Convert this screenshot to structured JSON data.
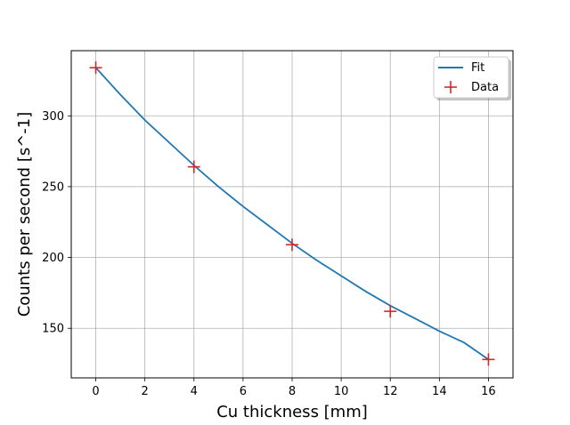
{
  "chart_data": {
    "type": "scatter",
    "title": "",
    "xlabel": "Cu thickness [mm]",
    "ylabel": "Counts per second [s^-1]",
    "xlim": [
      -1,
      17
    ],
    "ylim": [
      115,
      346
    ],
    "xticks": [
      0,
      2,
      4,
      6,
      8,
      10,
      12,
      14,
      16
    ],
    "yticks": [
      150,
      200,
      250,
      300
    ],
    "grid": true,
    "legend_position": "top-right",
    "series": [
      {
        "name": "Fit",
        "kind": "line",
        "color": "#1f77b4",
        "x": [
          0,
          1,
          2,
          3,
          4,
          5,
          6,
          7,
          8,
          9,
          10,
          11,
          12,
          13,
          14,
          15,
          16
        ],
        "y": [
          334,
          315,
          297,
          281,
          265,
          250,
          236,
          223,
          210,
          198,
          187,
          176,
          166,
          157,
          148,
          140,
          128
        ]
      },
      {
        "name": "Data",
        "kind": "scatter",
        "marker": "plus",
        "color": "#d62728",
        "x": [
          0,
          4,
          8,
          12,
          16
        ],
        "y": [
          334,
          264,
          209,
          162,
          128
        ]
      }
    ]
  }
}
